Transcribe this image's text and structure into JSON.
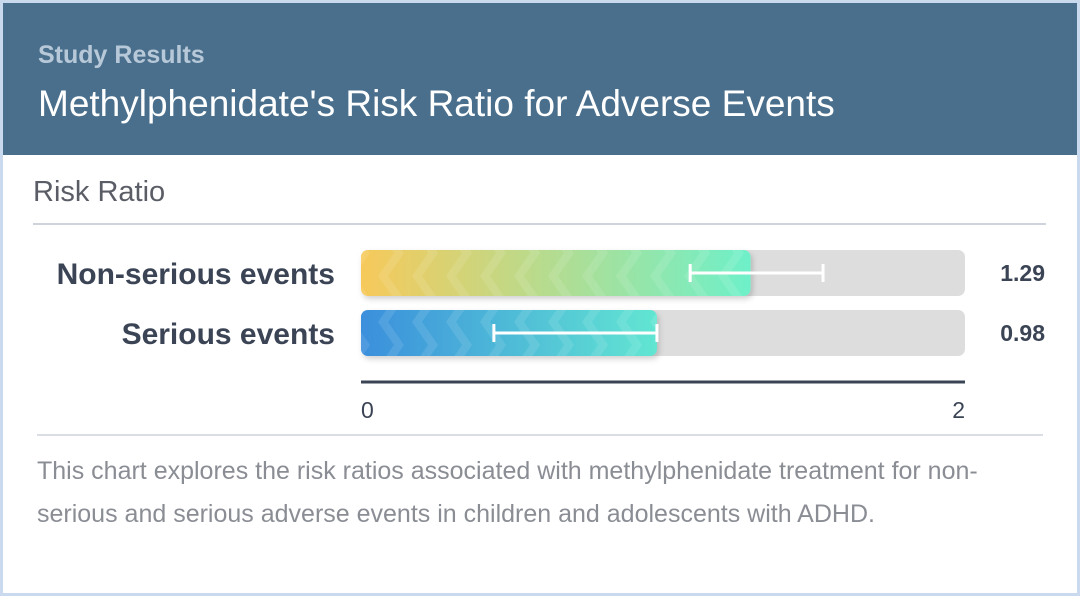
{
  "header": {
    "kicker": "Study Results",
    "title": "Methylphenidate's Risk Ratio for Adverse Events"
  },
  "section_label": "Risk Ratio",
  "caption": "This chart explores the risk ratios associated with methylphenidate treatment for non-serious and serious adverse events in children and adolescents with ADHD.",
  "colors": {
    "header_bg": "#4a6f8c",
    "track": "#dddddd",
    "bar1_start": "#f7c95a",
    "bar1_end": "#6ef0c9",
    "bar2_start": "#3b8fdc",
    "bar2_end": "#62e6d2"
  },
  "chart_data": {
    "type": "bar",
    "orientation": "horizontal",
    "categories": [
      "Non-serious events",
      "Serious events"
    ],
    "values": [
      1.29,
      0.98
    ],
    "value_labels": [
      "1.29",
      "0.98"
    ],
    "error_bars": [
      {
        "low": 1.09,
        "high": 1.53
      },
      {
        "low": 0.44,
        "high": 0.98
      }
    ],
    "xlim": [
      0,
      2
    ],
    "ticks": [
      "0",
      "2"
    ],
    "title": "Methylphenidate's Risk Ratio for Adverse Events",
    "xlabel": "Risk Ratio",
    "ylabel": ""
  }
}
